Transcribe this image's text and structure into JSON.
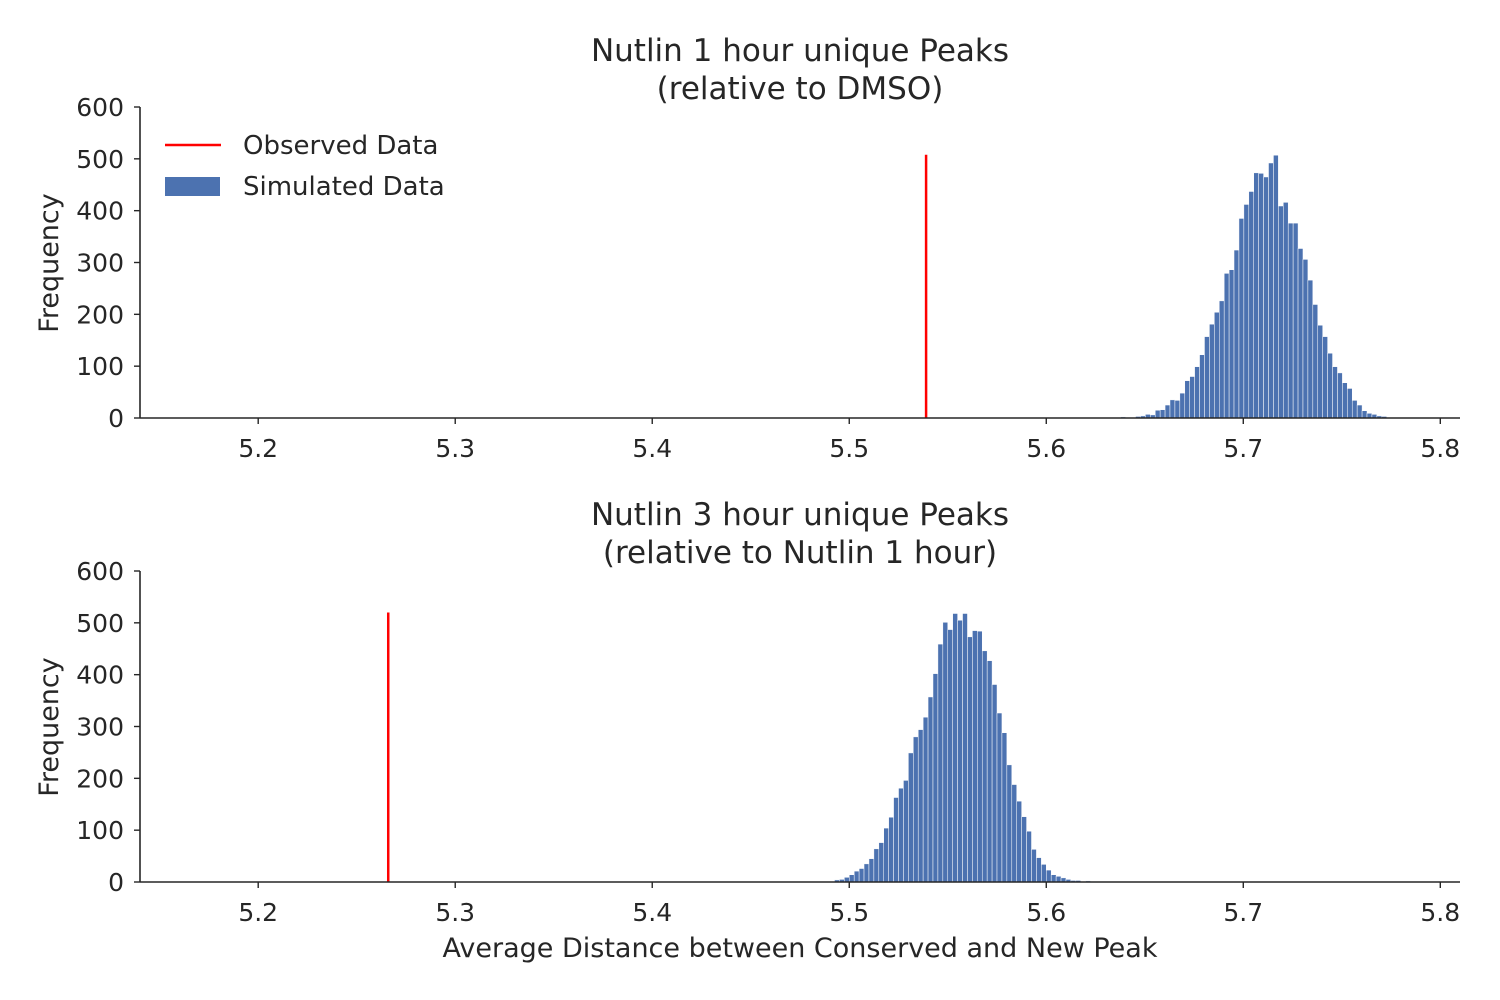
{
  "chart_data": [
    {
      "type": "histogram",
      "title": "Nutlin 1 hour unique Peaks\n(relative to DMSO)",
      "title_lines": [
        "Nutlin 1 hour unique Peaks",
        "(relative to DMSO)"
      ],
      "xlabel": "",
      "ylabel": "Frequency",
      "xlim": [
        5.14,
        5.81
      ],
      "ylim": [
        0,
        600
      ],
      "xticks": [
        5.2,
        5.3,
        5.4,
        5.5,
        5.6,
        5.7,
        5.8
      ],
      "xtick_labels": [
        "5.2",
        "5.3",
        "5.4",
        "5.5",
        "5.6",
        "5.7",
        "5.8"
      ],
      "yticks": [
        0,
        100,
        200,
        300,
        400,
        500,
        600
      ],
      "ytick_labels": [
        "0",
        "100",
        "200",
        "300",
        "400",
        "500",
        "600"
      ],
      "grid": false,
      "legend": {
        "placement": "top-left",
        "entries": [
          {
            "label": "Observed Data",
            "kind": "line",
            "color": "#ff0000"
          },
          {
            "label": "Simulated Data",
            "kind": "patch",
            "color": "#4c72b0"
          }
        ]
      },
      "series": [
        {
          "name": "Simulated Data",
          "kind": "histogram",
          "color": "#4c72b0",
          "bin_start": 5.6378,
          "bin_width": 0.0025,
          "counts": [
            2,
            1,
            0,
            3,
            4,
            7,
            6,
            15,
            16,
            25,
            35,
            34,
            48,
            72,
            80,
            99,
            122,
            157,
            181,
            204,
            226,
            279,
            286,
            324,
            385,
            412,
            437,
            473,
            472,
            465,
            492,
            507,
            409,
            416,
            376,
            376,
            327,
            306,
            266,
            219,
            179,
            157,
            125,
            99,
            87,
            68,
            57,
            34,
            25,
            14,
            9,
            7,
            4,
            3
          ]
        },
        {
          "name": "Observed Data",
          "kind": "vline",
          "color": "#ff0000",
          "x": 5.539,
          "y_range": [
            0,
            508
          ]
        }
      ]
    },
    {
      "type": "histogram",
      "title": "Nutlin 3 hour unique Peaks\n(relative to Nutlin 1 hour)",
      "title_lines": [
        "Nutlin 3 hour unique Peaks",
        "(relative to Nutlin 1 hour)"
      ],
      "xlabel": "Average Distance between Conserved and New Peak",
      "ylabel": "Frequency",
      "xlim": [
        5.14,
        5.81
      ],
      "ylim": [
        0,
        600
      ],
      "xticks": [
        5.2,
        5.3,
        5.4,
        5.5,
        5.6,
        5.7,
        5.8
      ],
      "xtick_labels": [
        "5.2",
        "5.3",
        "5.4",
        "5.5",
        "5.6",
        "5.7",
        "5.8"
      ],
      "yticks": [
        0,
        100,
        200,
        300,
        400,
        500,
        600
      ],
      "ytick_labels": [
        "0",
        "100",
        "200",
        "300",
        "400",
        "500",
        "600"
      ],
      "grid": false,
      "series": [
        {
          "name": "Simulated Data",
          "kind": "histogram",
          "color": "#4c72b0",
          "bin_start": 5.4925,
          "bin_width": 0.0025,
          "counts": [
            4,
            5,
            9,
            14,
            21,
            26,
            35,
            45,
            64,
            76,
            104,
            125,
            163,
            181,
            196,
            249,
            280,
            294,
            318,
            357,
            402,
            459,
            501,
            487,
            518,
            505,
            518,
            473,
            485,
            484,
            446,
            427,
            381,
            326,
            288,
            226,
            188,
            156,
            126,
            98,
            63,
            47,
            34,
            23,
            14,
            11,
            8,
            5,
            3,
            3,
            1,
            2,
            1
          ]
        },
        {
          "name": "Observed Data",
          "kind": "vline",
          "color": "#ff0000",
          "x": 5.266,
          "y_range": [
            0,
            520
          ]
        }
      ]
    }
  ]
}
